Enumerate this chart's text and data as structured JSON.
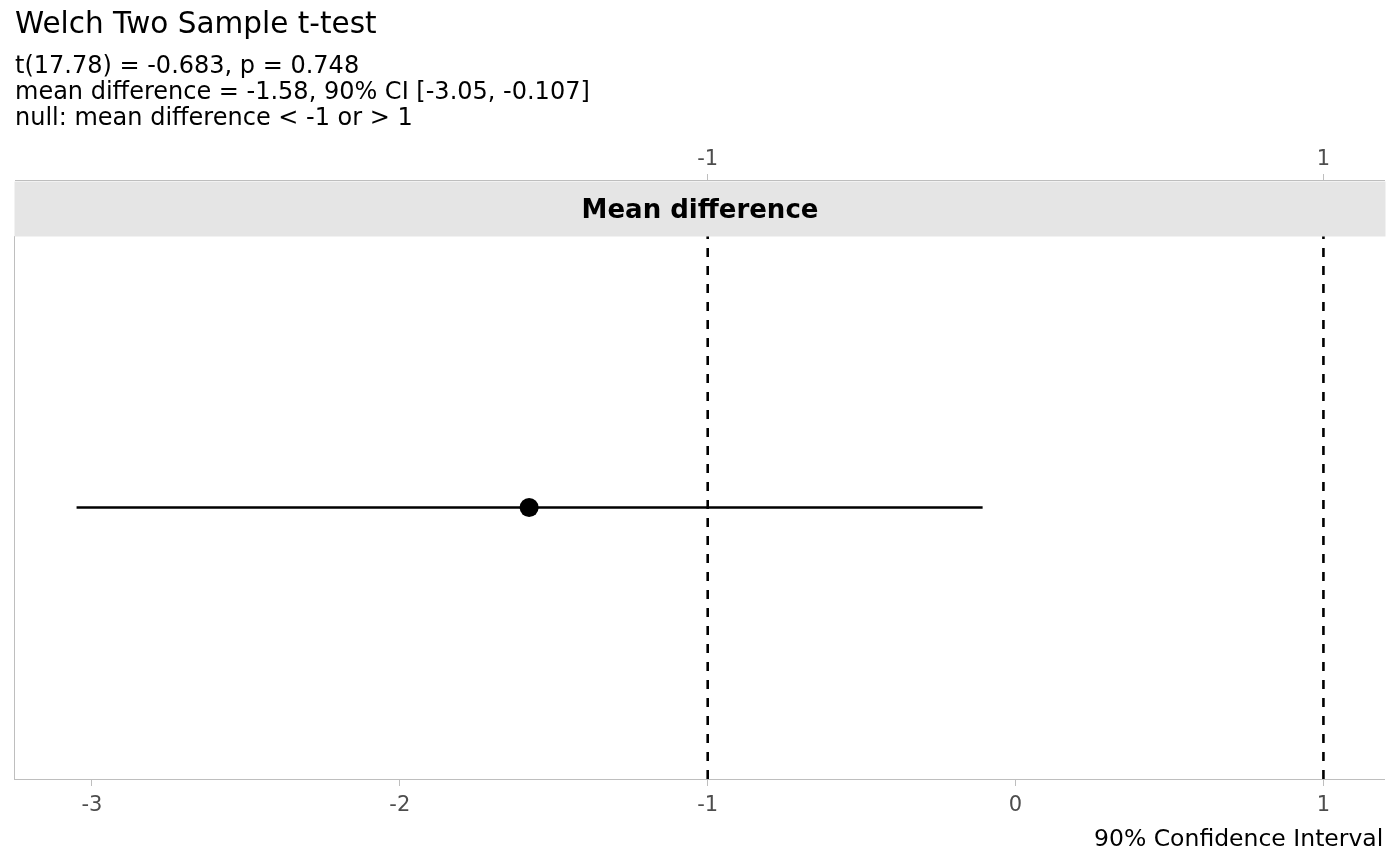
{
  "chart_data": {
    "type": "scatter",
    "title": "Welch Two Sample t-test",
    "subtitle": "t(17.78) = -0.683, p = 0.748\nmean difference = -1.58, 90% CI [-3.05, -0.107]\nnull: mean difference < -1 or > 1",
    "xlabel": "90% Confidence Interval",
    "annotations": [
      "Mean difference"
    ],
    "orientation": "horizontal",
    "categories": [
      null
    ],
    "values": [
      -1.58
    ],
    "errors": [
      [
        -3.05,
        -0.107
      ]
    ],
    "color": "#000000",
    "marker": "circle",
    "xlim": [
      -3.25,
      1.2
    ],
    "xticks": [
      -3,
      -2,
      -1,
      0,
      1
    ],
    "x2lim": [
      -3.25,
      1.2
    ],
    "x2ticks": [
      -1,
      1
    ],
    "ref_lines": [
      {
        "axis": "x",
        "value": -1,
        "line_style": "dashed",
        "color": "#000000"
      },
      {
        "axis": "x",
        "value": 1,
        "line_style": "dashed",
        "color": "#000000"
      }
    ],
    "tick_labels": "x"
  }
}
